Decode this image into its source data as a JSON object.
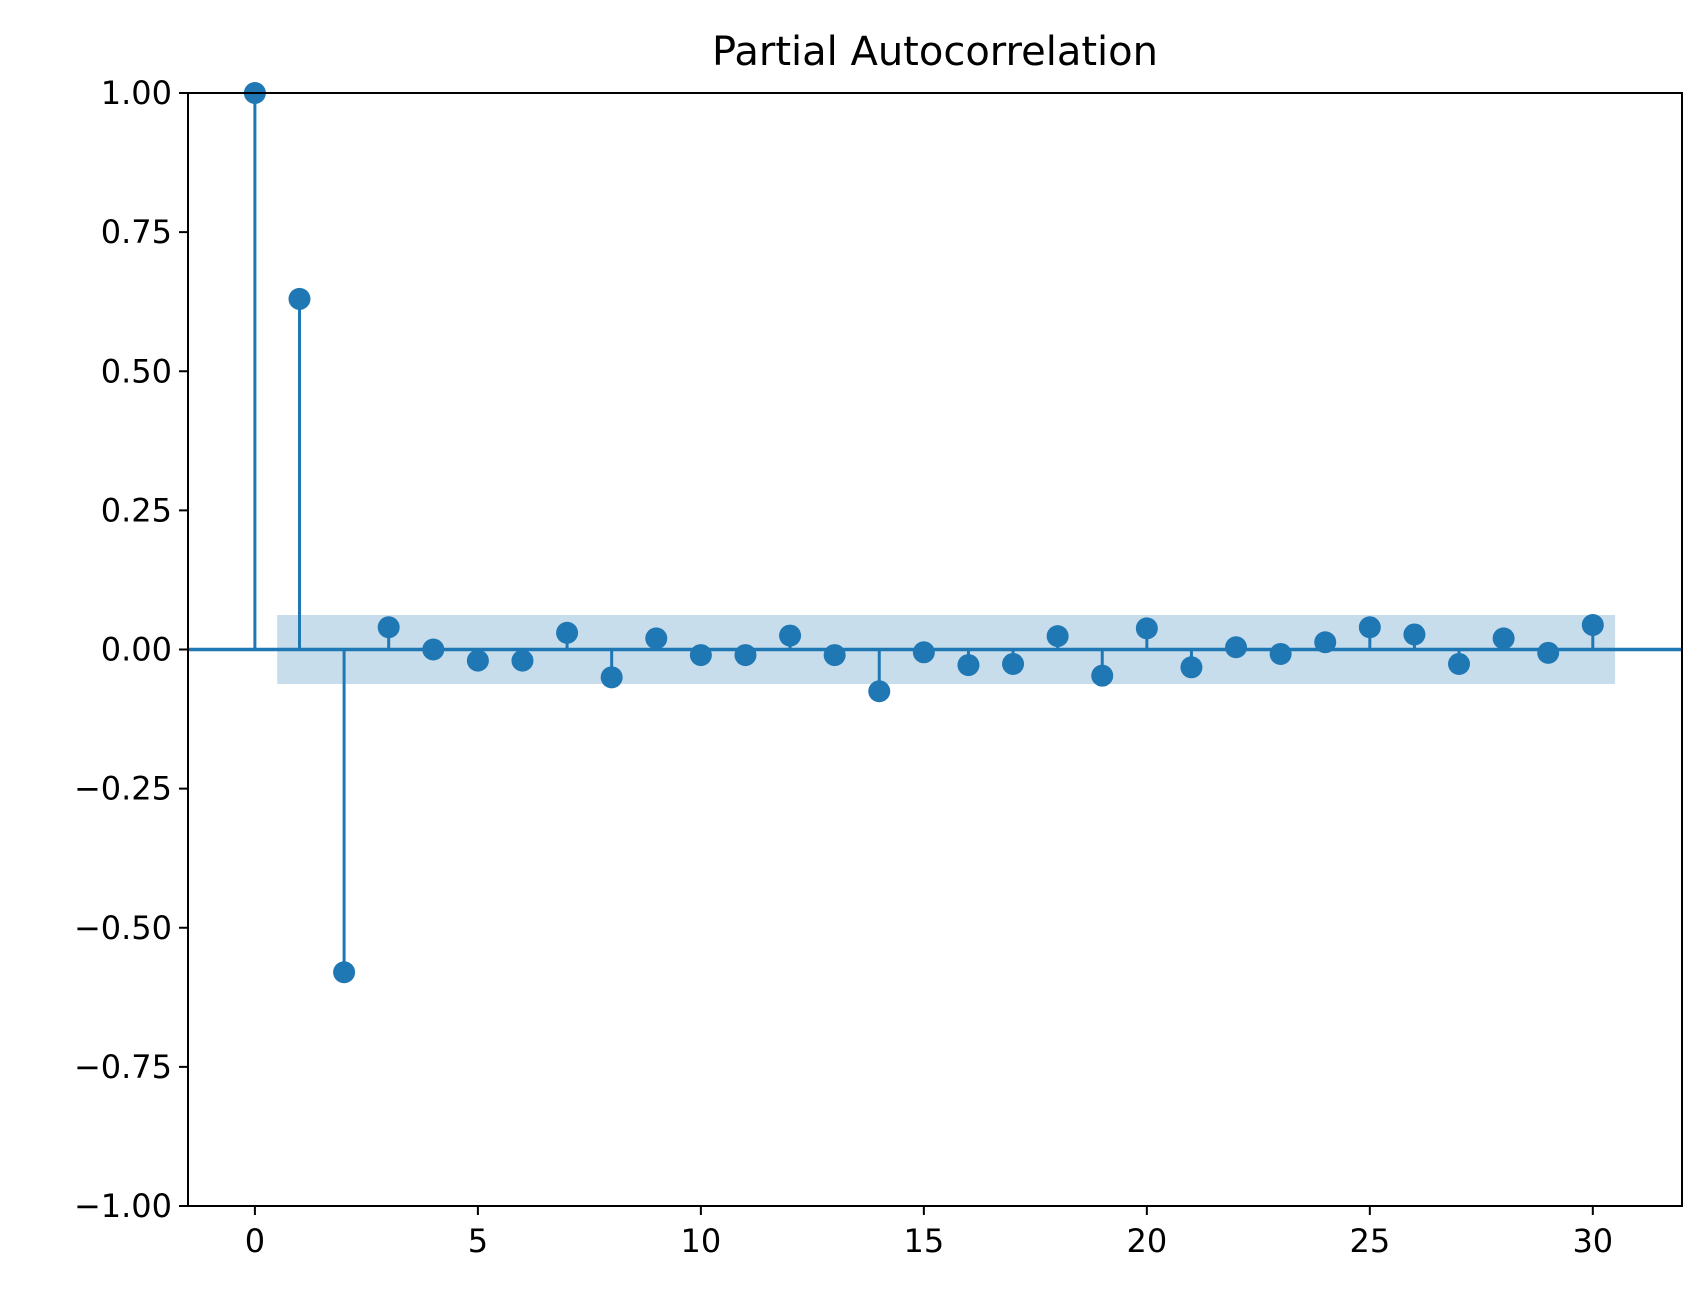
{
  "chart_data": {
    "type": "stem",
    "title": "Partial Autocorrelation",
    "xlabel": "",
    "ylabel": "",
    "xlim": [
      -1.5,
      32
    ],
    "ylim": [
      -1.0,
      1.0
    ],
    "x_ticks": [
      0,
      5,
      10,
      15,
      20,
      25,
      30
    ],
    "x_tick_labels": [
      "0",
      "5",
      "10",
      "15",
      "20",
      "25",
      "30"
    ],
    "y_ticks": [
      1.0,
      0.75,
      0.5,
      0.25,
      0.0,
      -0.25,
      -0.5,
      -0.75,
      -1.0
    ],
    "y_tick_labels": [
      "1.00",
      "0.75",
      "0.50",
      "0.25",
      "0.00",
      "−0.25",
      "−0.50",
      "−0.75",
      "−1.00"
    ],
    "lags": [
      0,
      1,
      2,
      3,
      4,
      5,
      6,
      7,
      8,
      9,
      10,
      11,
      12,
      13,
      14,
      15,
      16,
      17,
      18,
      19,
      20,
      21,
      22,
      23,
      24,
      25,
      26,
      27,
      28,
      29,
      30
    ],
    "values": [
      1.0,
      0.63,
      -0.58,
      0.04,
      0.0,
      -0.02,
      -0.02,
      0.03,
      -0.05,
      0.02,
      -0.01,
      -0.01,
      0.025,
      -0.01,
      -0.075,
      -0.005,
      -0.028,
      -0.026,
      0.024,
      -0.047,
      0.038,
      -0.032,
      0.004,
      -0.008,
      0.013,
      0.04,
      0.027,
      -0.026,
      0.02,
      -0.006,
      0.044
    ],
    "confidence_band": {
      "x_range": [
        0.5,
        30.5
      ],
      "lower": -0.062,
      "upper": 0.062
    },
    "grid": false,
    "colors": {
      "series": "#1f77b4",
      "band": "#1f77b4",
      "band_opacity": 0.25,
      "axes": "#000000"
    }
  }
}
